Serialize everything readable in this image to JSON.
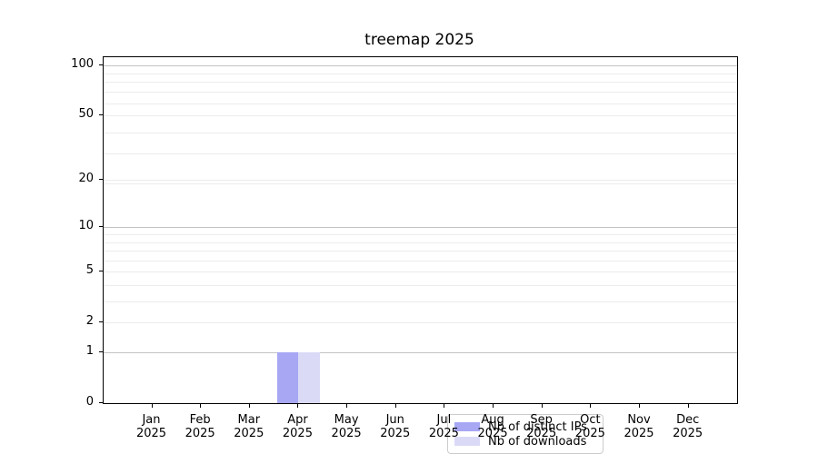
{
  "chart_data": {
    "type": "bar",
    "title": "treemap 2025",
    "categories": [
      "Jan 2025",
      "Feb 2025",
      "Mar 2025",
      "Apr 2025",
      "May 2025",
      "Jun 2025",
      "Jul 2025",
      "Aug 2025",
      "Sep 2025",
      "Oct 2025",
      "Nov 2025",
      "Dec 2025"
    ],
    "series": [
      {
        "name": "Nb of distinct IPs",
        "color": "#a7a7f4",
        "values": [
          0,
          0,
          0,
          1,
          0,
          0,
          0,
          0,
          0,
          0,
          0,
          0
        ]
      },
      {
        "name": "Nb of downloads",
        "color": "#dadaf7",
        "values": [
          0,
          0,
          0,
          1,
          0,
          0,
          0,
          0,
          0,
          0,
          0,
          0
        ]
      }
    ],
    "y_axis": {
      "scale": "log1p",
      "tick_values": [
        0,
        1,
        2,
        5,
        10,
        20,
        50,
        100
      ],
      "tick_labels": [
        "0",
        "1",
        "2",
        "5",
        "10",
        "20",
        "50",
        "100"
      ],
      "major_grid_values": [
        1,
        10,
        100
      ],
      "minor_grid_values": [
        2,
        3,
        4,
        5,
        6,
        7,
        8,
        9,
        19,
        20,
        29,
        39,
        50,
        59,
        69,
        79,
        89
      ],
      "ylim": [
        0,
        110
      ]
    },
    "x_axis": {
      "tick_labels_line1": [
        "Jan",
        "Feb",
        "Mar",
        "Apr",
        "May",
        "Jun",
        "Jul",
        "Aug",
        "Sep",
        "Oct",
        "Nov",
        "Dec"
      ],
      "tick_labels_line2": "2025"
    },
    "grid": "horizontal",
    "legend_position": "lower center"
  },
  "legend": {
    "items": [
      {
        "label": "Nb of distinct IPs"
      },
      {
        "label": "Nb of downloads"
      }
    ]
  },
  "colors": {
    "distinct_ips": "#a7a7f4",
    "downloads": "#dadaf7",
    "grid_major": "#c3c3c3",
    "grid_minor": "#ececec",
    "spine": "#000000",
    "legend_border": "#cccccc"
  }
}
